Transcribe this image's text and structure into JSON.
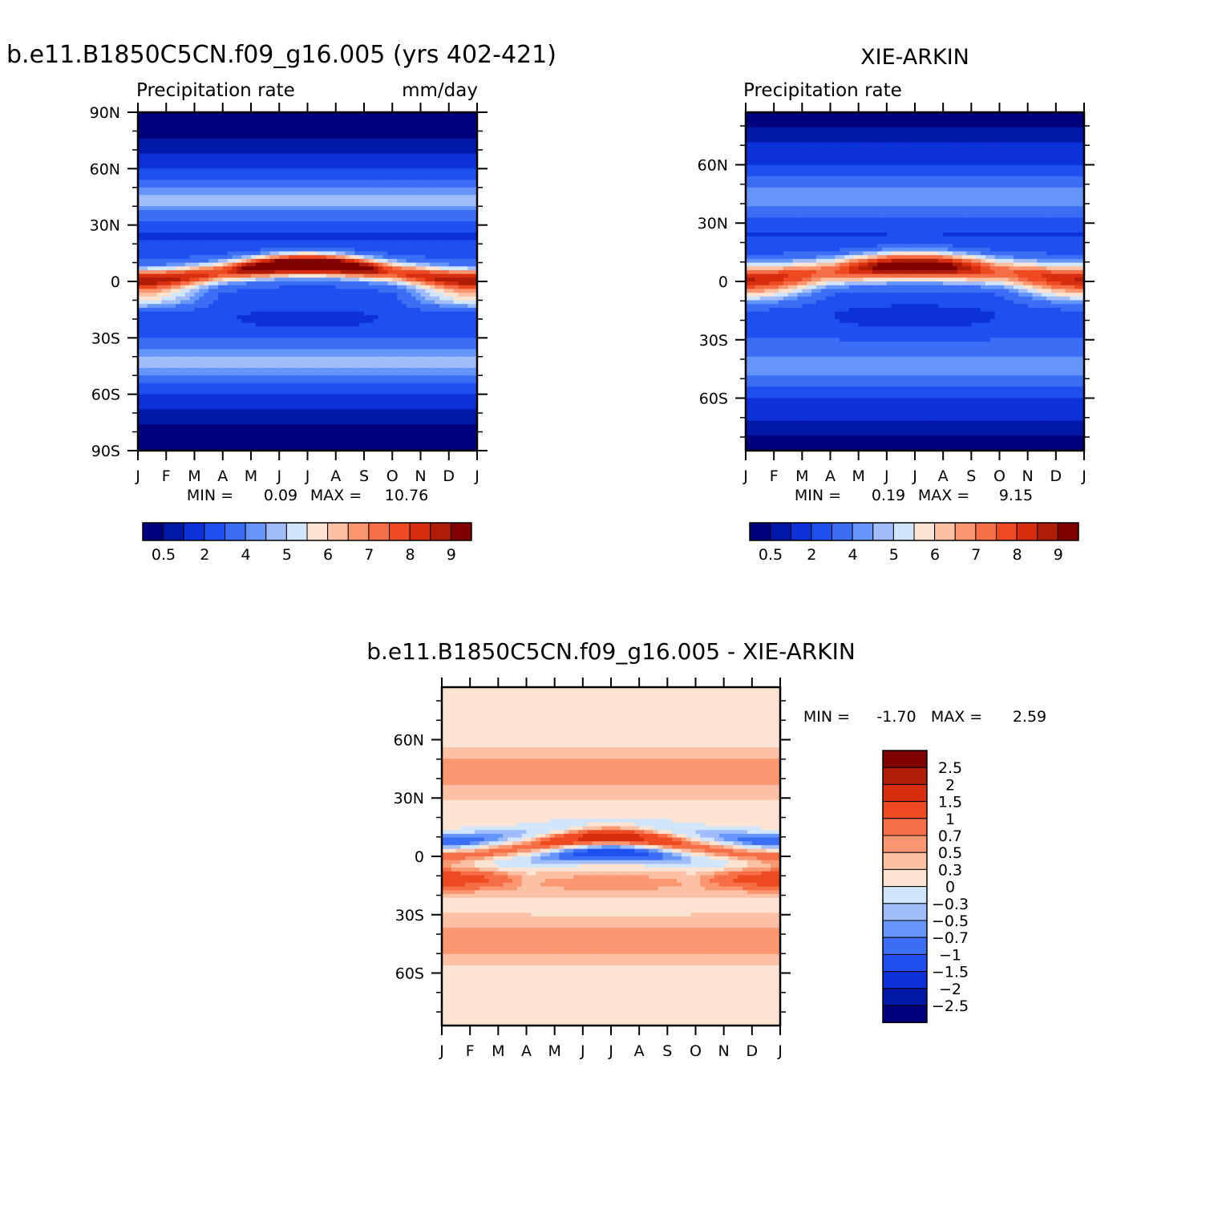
{
  "chart_data": [
    {
      "type": "heatmap",
      "title": "b.e11.B1850C5CN.f09_g16.005 (yrs 402-421)",
      "subtitle_left": "Precipitation rate",
      "subtitle_right": "mm/day",
      "x_ticks": [
        "J",
        "F",
        "M",
        "A",
        "M",
        "J",
        "J",
        "A",
        "S",
        "O",
        "N",
        "D",
        "J"
      ],
      "y_ticks": [
        "90N",
        "60N",
        "30N",
        "0",
        "30S",
        "60S",
        "90S"
      ],
      "y_tick_values": [
        90,
        60,
        30,
        0,
        -30,
        -60,
        -90
      ],
      "ylim": [
        -90,
        90
      ],
      "stats": {
        "min_label": "MIN =",
        "min": "0.09",
        "max_label": "MAX =",
        "max": "10.76"
      },
      "contour_levels": [
        0.5,
        1,
        2,
        3,
        4,
        4.5,
        5,
        5.5,
        6,
        6.5,
        7,
        7.5,
        8,
        8.5,
        9
      ],
      "colorbar_labels": [
        "0.5",
        "2",
        "4",
        "5",
        "6",
        "7",
        "8",
        "9"
      ],
      "itcz_peak": {
        "month": "Aug",
        "lat": 8,
        "value": 10.76
      }
    },
    {
      "type": "heatmap",
      "title": "XIE-ARKIN",
      "subtitle_left": "Precipitation rate",
      "subtitle_right": "",
      "x_ticks": [
        "J",
        "F",
        "M",
        "A",
        "M",
        "J",
        "J",
        "A",
        "S",
        "O",
        "N",
        "D",
        "J"
      ],
      "y_ticks": [
        "60N",
        "30N",
        "0",
        "30S",
        "60S"
      ],
      "y_tick_values": [
        60,
        30,
        0,
        -30,
        -60
      ],
      "ylim": [
        -87,
        87
      ],
      "stats": {
        "min_label": "MIN =",
        "min": "0.19",
        "max_label": "MAX =",
        "max": "9.15"
      },
      "contour_levels": [
        0.5,
        1,
        2,
        3,
        4,
        4.5,
        5,
        5.5,
        6,
        6.5,
        7,
        7.5,
        8,
        8.5,
        9
      ],
      "colorbar_labels": [
        "0.5",
        "2",
        "4",
        "5",
        "6",
        "7",
        "8",
        "9"
      ],
      "itcz_peak": {
        "month": "Jul",
        "lat": 7,
        "value": 9.15
      }
    },
    {
      "type": "heatmap",
      "title": "b.e11.B1850C5CN.f09_g16.005 - XIE-ARKIN",
      "x_ticks": [
        "J",
        "F",
        "M",
        "A",
        "M",
        "J",
        "J",
        "A",
        "S",
        "O",
        "N",
        "D",
        "J"
      ],
      "y_ticks": [
        "60N",
        "30N",
        "0",
        "30S",
        "60S"
      ],
      "y_tick_values": [
        60,
        30,
        0,
        -30,
        -60
      ],
      "ylim": [
        -87,
        87
      ],
      "stats": {
        "min_label": "MIN =",
        "min": "-1.70",
        "max_label": "MAX =",
        "max": "2.59"
      },
      "contour_levels": [
        -2.5,
        -2,
        -1.5,
        -1,
        -0.7,
        -0.5,
        -0.3,
        0,
        0.3,
        0.5,
        0.7,
        1,
        1.5,
        2,
        2.5
      ],
      "colorbar_labels": [
        "2.5",
        "2",
        "1.5",
        "1",
        "0.7",
        "0.5",
        "0.3",
        "0",
        "−0.3",
        "−0.5",
        "−0.7",
        "−1",
        "−1.5",
        "−2",
        "−2.5"
      ]
    }
  ],
  "colors": {
    "seq": [
      "#00007f",
      "#0018a8",
      "#0a32d8",
      "#1e50f0",
      "#3c6ef5",
      "#6496fa",
      "#a0bcfb",
      "#d2e6fb",
      "#fde4d2",
      "#fcc0a4",
      "#fa9670",
      "#f56e46",
      "#ee4a22",
      "#d82e10",
      "#b01c08",
      "#800000"
    ]
  }
}
